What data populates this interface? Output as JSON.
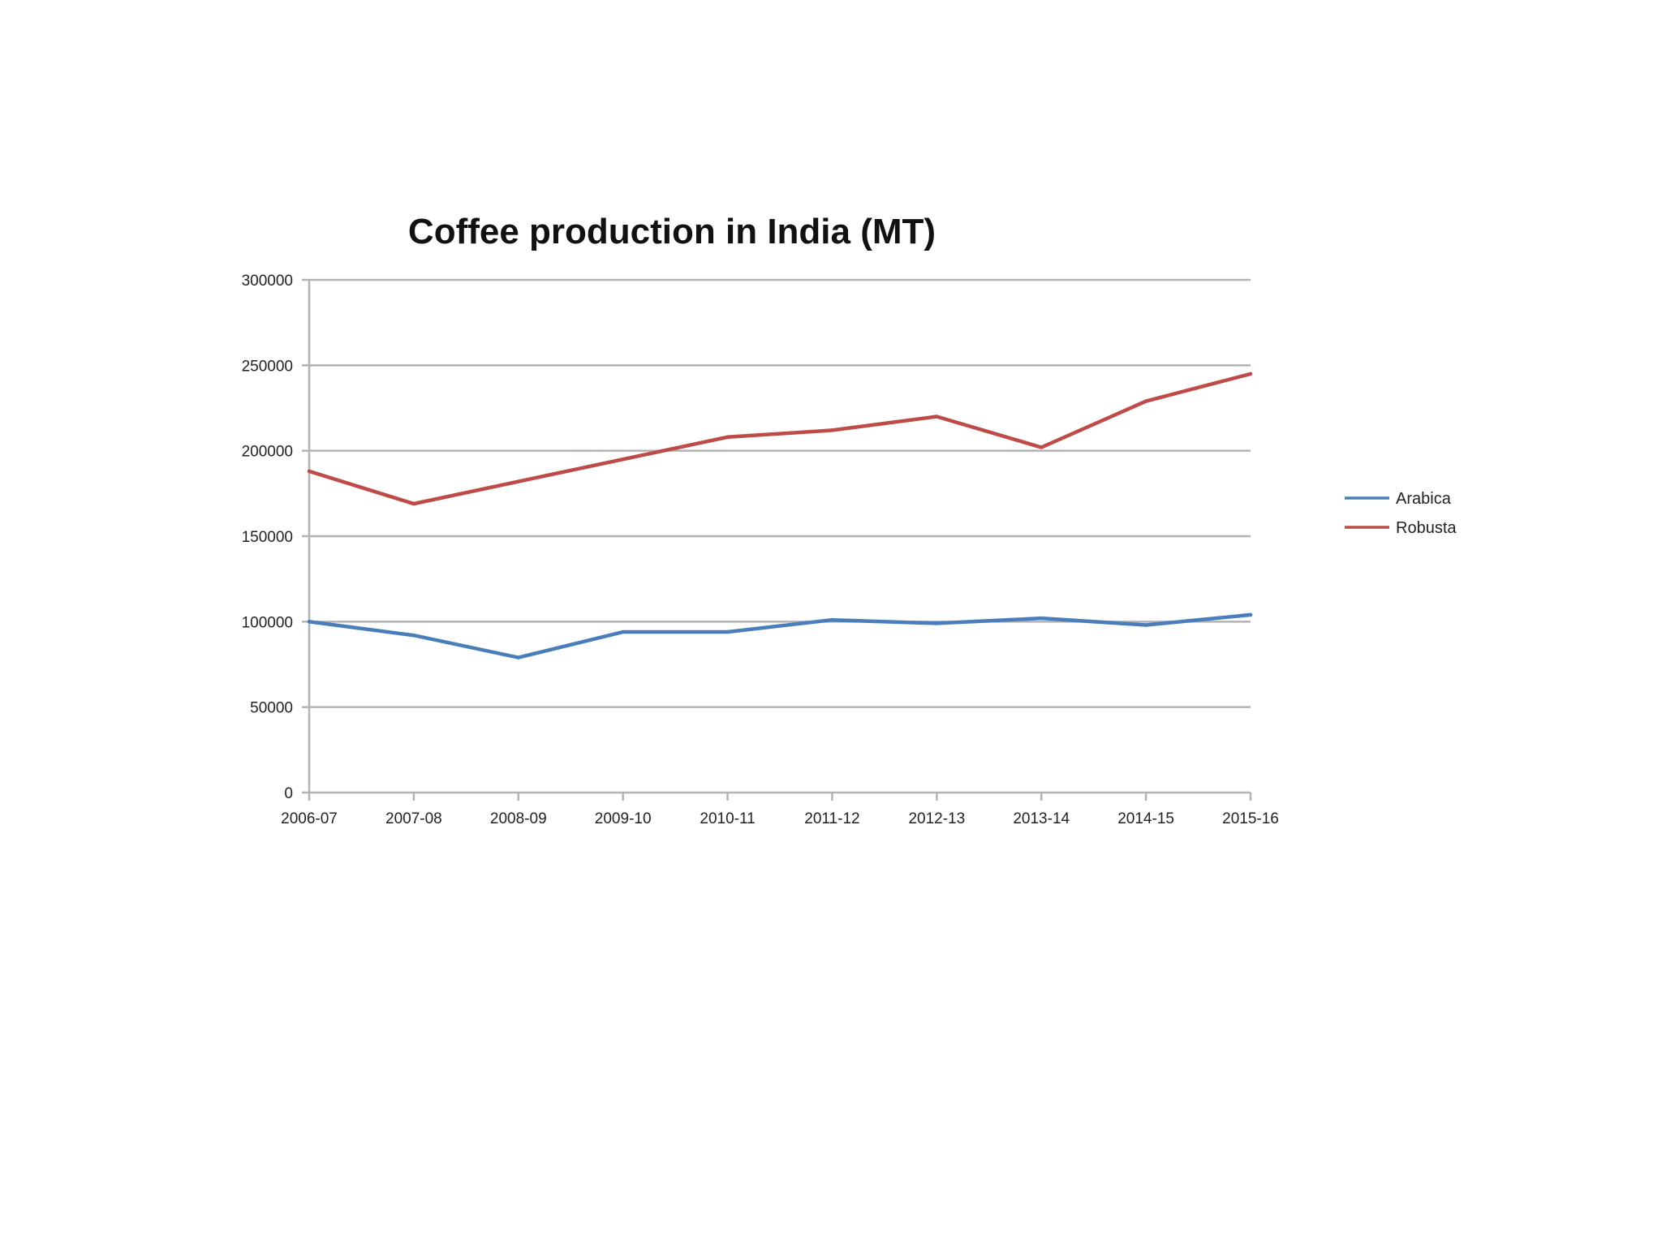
{
  "chart_data": {
    "type": "line",
    "title": "Coffee production in India (MT)",
    "xlabel": "",
    "ylabel": "",
    "categories": [
      "2006-07",
      "2007-08",
      "2008-09",
      "2009-10",
      "2010-11",
      "2011-12",
      "2012-13",
      "2013-14",
      "2014-15",
      "2015-16"
    ],
    "series": [
      {
        "name": "Arabica",
        "color": "#4a7ebb",
        "values": [
          100000,
          92000,
          79000,
          94000,
          94000,
          101000,
          99000,
          102000,
          98000,
          104000
        ]
      },
      {
        "name": "Robusta",
        "color": "#be4b48",
        "values": [
          188000,
          169000,
          182000,
          195000,
          208000,
          212000,
          220000,
          202000,
          229000,
          245000
        ]
      }
    ],
    "ylim": [
      0,
      300000
    ],
    "yticks": [
      0,
      50000,
      100000,
      150000,
      200000,
      250000,
      300000
    ],
    "grid": true,
    "legend_position": "right"
  }
}
